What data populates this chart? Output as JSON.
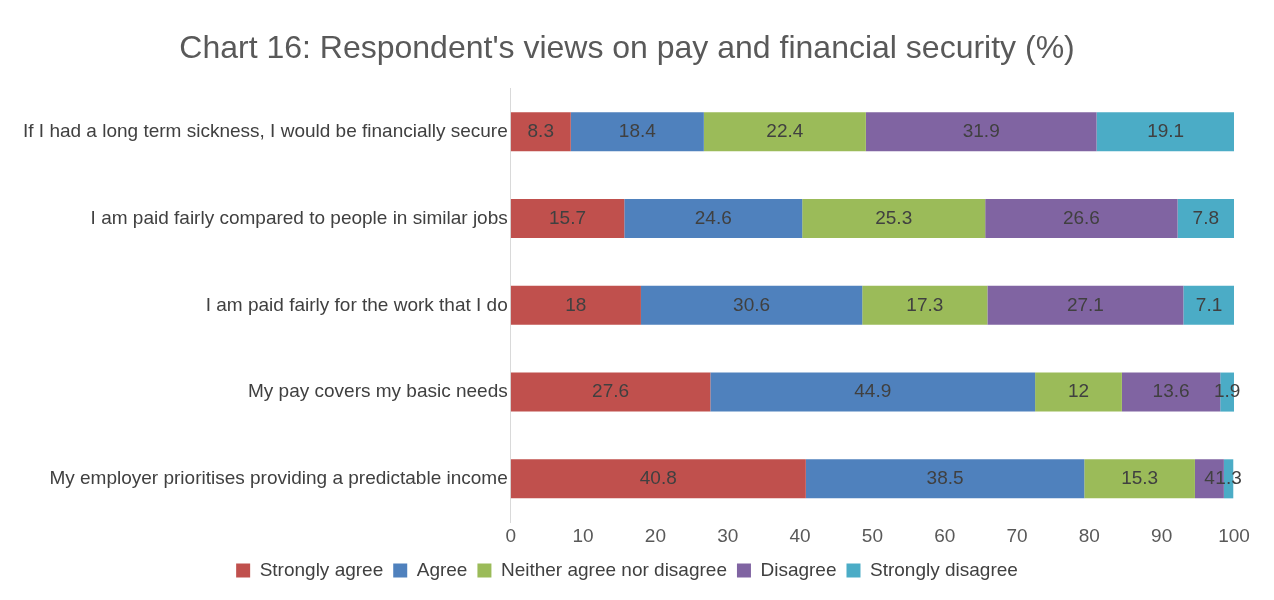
{
  "chart_data": {
    "type": "bar",
    "title": "Chart 16: Respondent's views on pay and financial security (%)",
    "orientation": "horizontal",
    "stacked": true,
    "data_labels": true,
    "legend": "bottom",
    "grid": false,
    "categories": [
      "If I had a long term sickness, I would be financially secure",
      "I am paid fairly compared to people in similar jobs",
      "I am paid fairly for the work that I do",
      "My pay covers my basic needs",
      "My employer prioritises providing a predictable income"
    ],
    "xlim": [
      0,
      100
    ],
    "xticks": [
      0,
      10,
      20,
      30,
      40,
      50,
      60,
      70,
      80,
      90,
      100
    ],
    "series": [
      {
        "name": "Strongly agree",
        "color": "#c0504d",
        "values": [
          8.3,
          15.7,
          18,
          27.6,
          40.8
        ]
      },
      {
        "name": "Agree",
        "color": "#4f81bd",
        "values": [
          18.4,
          24.6,
          30.6,
          44.9,
          38.5
        ]
      },
      {
        "name": "Neither agree nor disagree",
        "color": "#9bbb59",
        "values": [
          22.4,
          25.3,
          17.3,
          12,
          15.3
        ]
      },
      {
        "name": "Disagree",
        "color": "#8064a2",
        "values": [
          31.9,
          26.6,
          27.1,
          13.6,
          4
        ]
      },
      {
        "name": "Strongly disagree",
        "color": "#4bacc6",
        "values": [
          19.1,
          7.8,
          7.1,
          1.9,
          1.3
        ]
      }
    ]
  }
}
